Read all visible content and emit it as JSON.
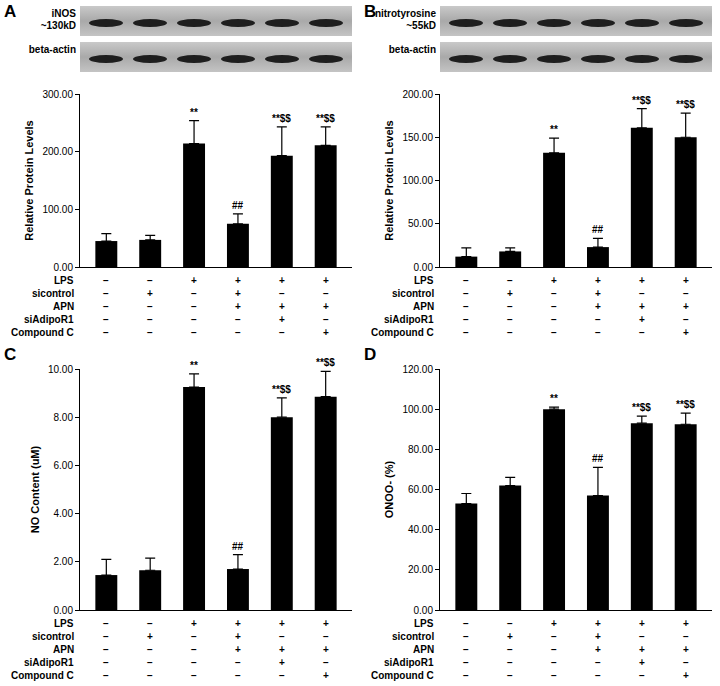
{
  "chart_data": [
    {
      "type": "bar",
      "title": "A",
      "y_label": "Relative Protein Levels",
      "color": "#000000",
      "grid": false,
      "tick_labels": "y",
      "blot": [
        {
          "label": [
            "iNOS",
            "~130kD"
          ]
        },
        {
          "label": [
            "beta-actin"
          ]
        }
      ],
      "categories": [
        null,
        null,
        null,
        null,
        null,
        null
      ],
      "values": [
        45,
        47,
        214,
        75,
        193,
        211
      ],
      "errors": [
        13,
        8,
        40,
        17,
        50,
        32
      ],
      "significance": [
        null,
        null,
        "**",
        "##",
        "**$$",
        "**$$"
      ],
      "conditions": [
        {
          "name": "LPS",
          "values": [
            "−",
            "−",
            "+",
            "+",
            "+",
            "+"
          ]
        },
        {
          "name": "sicontrol",
          "values": [
            "−",
            "+",
            "−",
            "+",
            "−",
            "−"
          ]
        },
        {
          "name": "APN",
          "values": [
            "−",
            "−",
            "−",
            "+",
            "+",
            "+"
          ]
        },
        {
          "name": "siAdipoR1",
          "values": [
            "−",
            "−",
            "−",
            "−",
            "+",
            "−"
          ]
        },
        {
          "name": "Compound C",
          "values": [
            "−",
            "−",
            "−",
            "−",
            "−",
            "+"
          ]
        }
      ],
      "ylim": [
        0,
        300
      ],
      "yticks": [
        {
          "value": 0,
          "label": "0.00"
        },
        {
          "value": 100,
          "label": "100.00"
        },
        {
          "value": 200,
          "label": "200.00"
        },
        {
          "value": 300,
          "label": "300.00"
        }
      ]
    },
    {
      "type": "bar",
      "title": "B",
      "y_label": "Relative Protein Levels",
      "color": "#000000",
      "grid": false,
      "tick_labels": "y",
      "blot": [
        {
          "label": [
            "nitrotyrosine",
            "~55kD"
          ]
        },
        {
          "label": [
            "beta-actin"
          ]
        }
      ],
      "categories": [
        null,
        null,
        null,
        null,
        null,
        null
      ],
      "values": [
        12,
        18,
        132,
        23,
        161,
        150
      ],
      "errors": [
        10,
        4,
        17,
        10,
        22,
        28
      ],
      "significance": [
        null,
        null,
        "**",
        "##",
        "**$$",
        "**$$"
      ],
      "conditions": [
        {
          "name": "LPS",
          "values": [
            "−",
            "−",
            "+",
            "+",
            "+",
            "+"
          ]
        },
        {
          "name": "sicontrol",
          "values": [
            "−",
            "+",
            "−",
            "+",
            "−",
            "−"
          ]
        },
        {
          "name": "APN",
          "values": [
            "−",
            "−",
            "−",
            "+",
            "+",
            "+"
          ]
        },
        {
          "name": "siAdipoR1",
          "values": [
            "−",
            "−",
            "−",
            "−",
            "+",
            "−"
          ]
        },
        {
          "name": "Compound C",
          "values": [
            "−",
            "−",
            "−",
            "−",
            "−",
            "+"
          ]
        }
      ],
      "ylim": [
        0,
        200
      ],
      "yticks": [
        {
          "value": 0,
          "label": "0.00"
        },
        {
          "value": 50,
          "label": "50.00"
        },
        {
          "value": 100,
          "label": "100.00"
        },
        {
          "value": 150,
          "label": "150.00"
        },
        {
          "value": 200,
          "label": "200.00"
        }
      ]
    },
    {
      "type": "bar",
      "title": "C",
      "y_label": "NO Content (uM)",
      "color": "#000000",
      "grid": false,
      "tick_labels": "y",
      "categories": [
        null,
        null,
        null,
        null,
        null,
        null
      ],
      "values": [
        1.45,
        1.65,
        9.25,
        1.7,
        8.0,
        8.85
      ],
      "errors": [
        0.65,
        0.5,
        0.55,
        0.6,
        0.8,
        1.05
      ],
      "significance": [
        null,
        null,
        "**",
        "##",
        "**$$",
        "**$$"
      ],
      "conditions": [
        {
          "name": "LPS",
          "values": [
            "−",
            "−",
            "+",
            "+",
            "+",
            "+"
          ]
        },
        {
          "name": "sicontrol",
          "values": [
            "−",
            "+",
            "−",
            "+",
            "−",
            "−"
          ]
        },
        {
          "name": "APN",
          "values": [
            "−",
            "−",
            "−",
            "+",
            "+",
            "+"
          ]
        },
        {
          "name": "siAdipoR1",
          "values": [
            "−",
            "−",
            "−",
            "−",
            "+",
            "−"
          ]
        },
        {
          "name": "Compound C",
          "values": [
            "−",
            "−",
            "−",
            "−",
            "−",
            "+"
          ]
        }
      ],
      "ylim": [
        0,
        10
      ],
      "yticks": [
        {
          "value": 0,
          "label": "0.00"
        },
        {
          "value": 2,
          "label": "2.00"
        },
        {
          "value": 4,
          "label": "4.00"
        },
        {
          "value": 6,
          "label": "6.00"
        },
        {
          "value": 8,
          "label": "8.00"
        },
        {
          "value": 10,
          "label": "10.00"
        }
      ]
    },
    {
      "type": "bar",
      "title": "D",
      "y_label": "ONOO- (%)",
      "color": "#000000",
      "grid": false,
      "tick_labels": "y",
      "categories": [
        null,
        null,
        null,
        null,
        null,
        null
      ],
      "values": [
        53,
        62,
        100,
        57,
        93,
        92.5
      ],
      "errors": [
        5,
        4,
        1,
        14,
        3.5,
        5.5
      ],
      "significance": [
        null,
        null,
        "**",
        "##",
        "**$$",
        "**$$"
      ],
      "conditions": [
        {
          "name": "LPS",
          "values": [
            "−",
            "−",
            "+",
            "+",
            "+",
            "+"
          ]
        },
        {
          "name": "sicontrol",
          "values": [
            "−",
            "+",
            "−",
            "+",
            "−",
            "−"
          ]
        },
        {
          "name": "APN",
          "values": [
            "−",
            "−",
            "−",
            "+",
            "+",
            "+"
          ]
        },
        {
          "name": "siAdipoR1",
          "values": [
            "−",
            "−",
            "−",
            "−",
            "+",
            "−"
          ]
        },
        {
          "name": "Compound C",
          "values": [
            "−",
            "−",
            "−",
            "−",
            "−",
            "+"
          ]
        }
      ],
      "ylim": [
        0,
        120
      ],
      "yticks": [
        {
          "value": 0,
          "label": "0.00"
        },
        {
          "value": 20,
          "label": "20.00"
        },
        {
          "value": 40,
          "label": "40.00"
        },
        {
          "value": 60,
          "label": "60.00"
        },
        {
          "value": 80,
          "label": "80.00"
        },
        {
          "value": 100,
          "label": "100.00"
        },
        {
          "value": 120,
          "label": "120.00"
        }
      ]
    }
  ]
}
